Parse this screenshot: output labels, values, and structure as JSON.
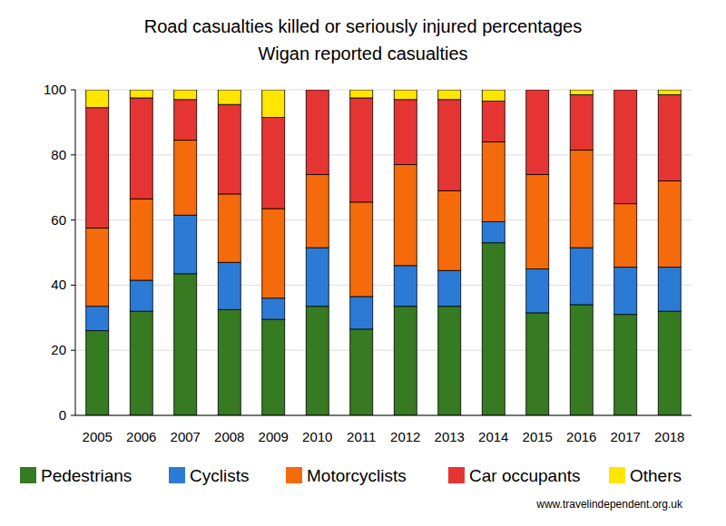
{
  "chart_data": {
    "type": "bar",
    "stacked": true,
    "title": "Road casualties killed or seriously injured percentages",
    "subtitle": "Wigan reported casualties",
    "annotations": [
      "www.travelindependent.org.uk"
    ],
    "categories": [
      "2005",
      "2006",
      "2007",
      "2008",
      "2009",
      "2010",
      "2011",
      "2012",
      "2013",
      "2014",
      "2015",
      "2016",
      "2017",
      "2018"
    ],
    "series": [
      {
        "name": "Pedestrians",
        "color": "#367a21",
        "values": [
          26,
          32,
          43.5,
          32.5,
          29.5,
          33.5,
          26.5,
          33.5,
          33.5,
          53,
          31.5,
          34,
          31,
          32
        ]
      },
      {
        "name": "Cyclists",
        "color": "#2b7bd6",
        "values": [
          7.5,
          9.5,
          18,
          14.5,
          6.5,
          18,
          10,
          12.5,
          11,
          6.5,
          13.5,
          17.5,
          14.5,
          13.5
        ]
      },
      {
        "name": "Motorcyclists",
        "color": "#f56a0a",
        "values": [
          24,
          25,
          23,
          21,
          27.5,
          22.5,
          29,
          31,
          24.5,
          24.5,
          29,
          30,
          19.5,
          26.5
        ]
      },
      {
        "name": "Car occupants",
        "color": "#e53532",
        "values": [
          37,
          31,
          12.5,
          27.5,
          28,
          26,
          32,
          20,
          28,
          12.5,
          26,
          17,
          35,
          26.5
        ]
      },
      {
        "name": "Others",
        "color": "#ffe600",
        "values": [
          5.5,
          2.5,
          3,
          4.5,
          8.5,
          0,
          2.5,
          3,
          3,
          3.5,
          0,
          1.5,
          0,
          1.5
        ]
      }
    ],
    "ylim": [
      0,
      100
    ],
    "yticks": [
      0,
      20,
      40,
      60,
      80,
      100
    ],
    "grid": true,
    "legend": "bottom"
  }
}
